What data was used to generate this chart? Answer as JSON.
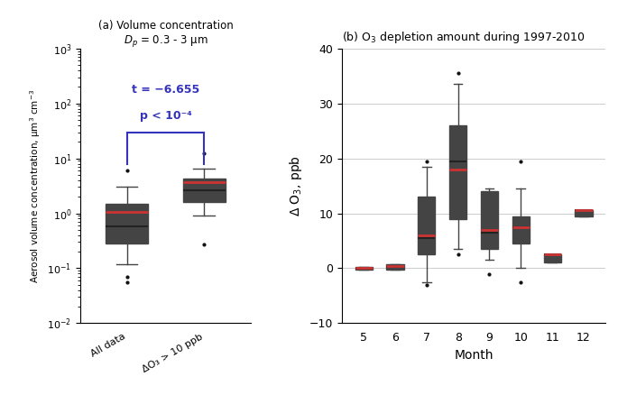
{
  "left_title_line1": "(a) Volume concentration",
  "left_title_line2": "Dₙ = 0.3 - 3 μm",
  "left_ylabel": "Aerosol volume concentration, μm³ cm⁻³",
  "left_categories": [
    "All data",
    "ΔO₃ > 10 ppb"
  ],
  "left_ylim": [
    0.01,
    1000
  ],
  "left_boxes": [
    {
      "q1": 0.28,
      "median": 0.58,
      "q3": 1.5,
      "mean": 1.05,
      "whislo": 0.12,
      "whishi": 3.0,
      "fliers": [
        6.0,
        0.055,
        0.07
      ]
    },
    {
      "q1": 1.6,
      "median": 2.6,
      "q3": 4.3,
      "mean": 3.7,
      "whislo": 0.9,
      "whishi": 6.5,
      "fliers": [
        12.5,
        0.27
      ]
    }
  ],
  "stat_text_line1": "t = −6.655",
  "stat_text_line2": "p < 10⁻⁴",
  "right_title": "(b) O₃ depletion amount during 1997-2010",
  "right_xlabel": "Month",
  "right_ylabel": "Δ O₃, ppb",
  "right_ylim": [
    -10,
    40
  ],
  "right_months": [
    5,
    6,
    7,
    8,
    9,
    10,
    11,
    12
  ],
  "right_boxes": [
    {
      "q1": -0.3,
      "median": -0.1,
      "q3": 0.3,
      "mean": 0.0,
      "whislo": -0.3,
      "whishi": 0.3,
      "fliers": []
    },
    {
      "q1": -0.3,
      "median": 0.2,
      "q3": 0.8,
      "mean": 0.4,
      "whislo": -0.3,
      "whishi": 0.8,
      "fliers": []
    },
    {
      "q1": 2.5,
      "median": 5.5,
      "q3": 13.0,
      "mean": 6.0,
      "whislo": -2.5,
      "whishi": 18.5,
      "fliers": [
        19.5,
        -3.0
      ]
    },
    {
      "q1": 9.0,
      "median": 19.5,
      "q3": 26.0,
      "mean": 18.0,
      "whislo": 3.5,
      "whishi": 33.5,
      "fliers": [
        35.5,
        2.5
      ]
    },
    {
      "q1": 3.5,
      "median": 6.5,
      "q3": 14.0,
      "mean": 7.0,
      "whislo": 1.5,
      "whishi": 14.5,
      "fliers": [
        -1.0
      ]
    },
    {
      "q1": 4.5,
      "median": 7.5,
      "q3": 9.5,
      "mean": 7.5,
      "whislo": 0.0,
      "whishi": 14.5,
      "fliers": [
        19.5,
        -2.5
      ]
    },
    {
      "q1": 1.0,
      "median": 2.5,
      "q3": 2.5,
      "mean": 2.5,
      "whislo": 1.0,
      "whishi": 2.5,
      "fliers": []
    },
    {
      "q1": 9.5,
      "median": 10.5,
      "q3": 10.5,
      "mean": 10.5,
      "whislo": 9.5,
      "whishi": 10.5,
      "fliers": []
    }
  ],
  "box_facecolor": "#b8b8b8",
  "box_edgecolor": "#444444",
  "median_color": "#222222",
  "mean_color": "#cc3333",
  "whisker_color": "#444444",
  "flier_color": "#111111",
  "bracket_color": "#3333bb",
  "background_color": "#ffffff",
  "grid_color": "#cccccc"
}
